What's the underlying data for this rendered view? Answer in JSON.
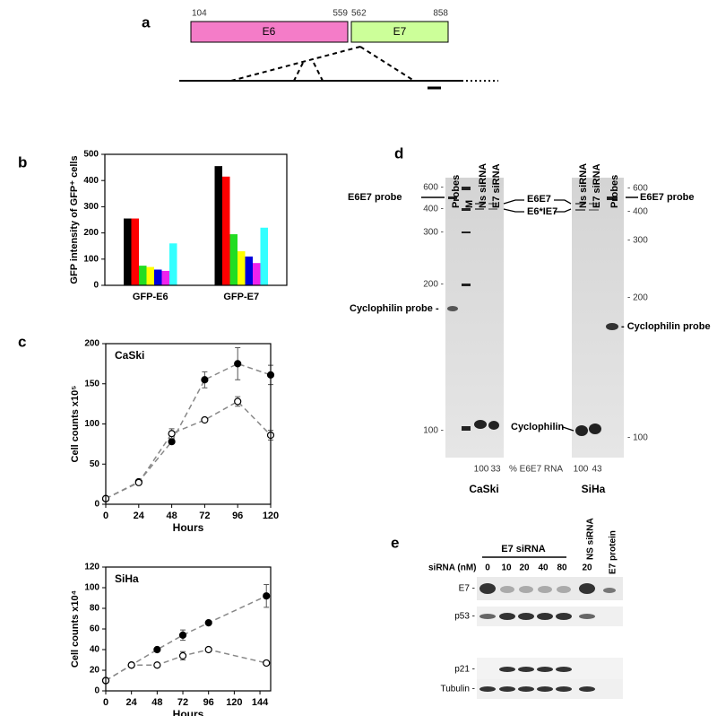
{
  "panel_a": {
    "label": "a",
    "positions": [
      "104",
      "559",
      "562",
      "858"
    ],
    "segments": [
      "E6",
      "E7"
    ]
  },
  "chart_data": [
    {
      "type": "bar",
      "panel_label": "b",
      "ylabel": "GFP intensity of GFP⁺ cells",
      "categories": [
        "GFP-E6",
        "GFP-E7"
      ],
      "series": [
        {
          "color": "#000000",
          "values": [
            255,
            455
          ]
        },
        {
          "color": "#ff0000",
          "values": [
            255,
            415
          ]
        },
        {
          "color": "#22dd22",
          "values": [
            75,
            195
          ]
        },
        {
          "color": "#ffff00",
          "values": [
            70,
            130
          ]
        },
        {
          "color": "#0000dd",
          "values": [
            60,
            110
          ]
        },
        {
          "color": "#ee22ee",
          "values": [
            55,
            85
          ]
        },
        {
          "color": "#33ffff",
          "values": [
            160,
            220
          ]
        }
      ],
      "ylim": [
        0,
        500
      ],
      "yticks": [
        0,
        100,
        200,
        300,
        400,
        500
      ],
      "grid": false
    },
    {
      "type": "line",
      "panel_label": "c",
      "annotation": "CaSki",
      "xlabel": "Hours",
      "ylabel": "Cell counts x10⁵",
      "linestyle": "dashed",
      "x": [
        0,
        24,
        48,
        72,
        96,
        120
      ],
      "series": [
        {
          "marker": "filled",
          "color": "#000000",
          "values": [
            7,
            28,
            78,
            155,
            175,
            161
          ],
          "errors": [
            null,
            null,
            null,
            10,
            20,
            12
          ]
        },
        {
          "marker": "open",
          "color": "#000000",
          "values": [
            7,
            27,
            88,
            105,
            128,
            86
          ],
          "errors": [
            null,
            null,
            6,
            null,
            6,
            6
          ]
        }
      ],
      "xlim": [
        0,
        120
      ],
      "xticks": [
        0,
        24,
        48,
        72,
        96,
        120
      ],
      "ylim": [
        0,
        200
      ],
      "yticks": [
        0,
        50,
        100,
        150,
        200
      ],
      "grid": false
    },
    {
      "type": "line",
      "annotation": "SiHa",
      "xlabel": "Hours",
      "ylabel": "Cell counts x10⁴",
      "linestyle": "dashed",
      "x": [
        0,
        24,
        48,
        72,
        96,
        150
      ],
      "series": [
        {
          "marker": "filled",
          "color": "#000000",
          "values": [
            10,
            25,
            40,
            54,
            66,
            92
          ],
          "errors": [
            null,
            null,
            null,
            5,
            null,
            11
          ]
        },
        {
          "marker": "open",
          "color": "#000000",
          "values": [
            10,
            25,
            25,
            34,
            40,
            27
          ],
          "errors": [
            null,
            null,
            null,
            4,
            2,
            null
          ]
        }
      ],
      "xlim": [
        0,
        154
      ],
      "xticks": [
        0,
        24,
        48,
        72,
        96,
        120,
        144
      ],
      "ylim": [
        0,
        120
      ],
      "yticks": [
        0,
        20,
        40,
        60,
        80,
        100,
        120
      ],
      "grid": false
    }
  ],
  "panel_d": {
    "label": "d",
    "left_lanes": [
      "Probes",
      "M",
      "Ns siRNA",
      "E7 siRNA"
    ],
    "right_lanes": [
      "Ns siRNA",
      "E7 siRNA",
      "Probes"
    ],
    "left_markers": [
      "600 -",
      "400 -",
      "300 -",
      "200 -",
      "100 -"
    ],
    "right_markers": [
      "- 600",
      "- 400",
      "- 300",
      "- 200",
      "- 100"
    ],
    "left_probe": "E6E7 probe",
    "right_probe": "E6E7 probe",
    "bands": [
      "E6E7",
      "E6*IE7"
    ],
    "left_cyclophilin_probe": "Cyclophilin probe -",
    "right_cyclophilin_probe": "- Cyclophilin probe",
    "cyclophilin": "Cyclophilin",
    "percent_label": "% E6E7 RNA",
    "caski_percent": [
      "100",
      "33"
    ],
    "siha_percent": [
      "100",
      "43"
    ],
    "cell_lines": [
      "CaSki",
      "SiHa"
    ]
  },
  "panel_e": {
    "label": "e",
    "group": "E7 siRNA",
    "dose_label": "siRNA (nM)",
    "doses": [
      "0",
      "10",
      "20",
      "40",
      "80",
      "20"
    ],
    "lanes": [
      "NS siRNA",
      "E7 protein"
    ],
    "blots": [
      "E7 -",
      "p53 -",
      "p21 -",
      "Tubulin -"
    ]
  }
}
